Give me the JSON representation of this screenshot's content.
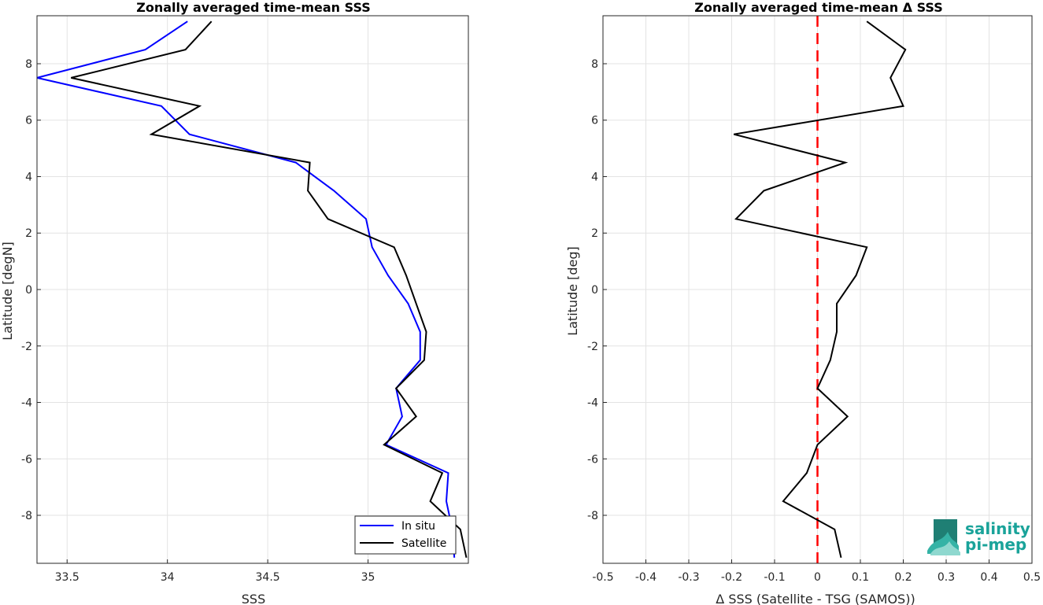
{
  "chart_data": [
    {
      "type": "line",
      "title": "Zonally averaged time-mean SSS",
      "xlabel": "SSS",
      "ylabel": "Latitude [degN]",
      "xlim": [
        33.35,
        35.5
      ],
      "ylim": [
        -9.7,
        9.7
      ],
      "xticks": [
        33.5,
        34,
        34.5,
        35
      ],
      "xtick_labels": [
        "33.5",
        "34",
        "34.5",
        "35"
      ],
      "yticks": [
        -8,
        -6,
        -4,
        -2,
        0,
        2,
        4,
        6,
        8
      ],
      "ytick_labels": [
        "-8",
        "-6",
        "-4",
        "-2",
        "0",
        "2",
        "4",
        "6",
        "8"
      ],
      "grid": true,
      "legend_position": "bottom-right",
      "series": [
        {
          "name": "In situ",
          "color": "#0000ff",
          "points": [
            [
              34.1,
              9.5
            ],
            [
              33.89,
              8.5
            ],
            [
              33.35,
              7.5
            ],
            [
              33.97,
              6.5
            ],
            [
              34.11,
              5.5
            ],
            [
              34.64,
              4.5
            ],
            [
              34.83,
              3.5
            ],
            [
              34.99,
              2.5
            ],
            [
              35.02,
              1.5
            ],
            [
              35.1,
              0.5
            ],
            [
              35.2,
              -0.5
            ],
            [
              35.26,
              -1.5
            ],
            [
              35.26,
              -2.5
            ],
            [
              35.14,
              -3.5
            ],
            [
              35.17,
              -4.5
            ],
            [
              35.09,
              -5.5
            ],
            [
              35.4,
              -6.5
            ],
            [
              35.39,
              -7.5
            ],
            [
              35.42,
              -8.5
            ],
            [
              35.43,
              -9.5
            ]
          ]
        },
        {
          "name": "Satellite",
          "color": "#000000",
          "points": [
            [
              34.22,
              9.5
            ],
            [
              34.09,
              8.5
            ],
            [
              33.52,
              7.5
            ],
            [
              34.16,
              6.5
            ],
            [
              33.92,
              5.5
            ],
            [
              34.71,
              4.5
            ],
            [
              34.7,
              3.5
            ],
            [
              34.8,
              2.5
            ],
            [
              35.13,
              1.5
            ],
            [
              35.19,
              0.5
            ],
            [
              35.24,
              -0.5
            ],
            [
              35.29,
              -1.5
            ],
            [
              35.28,
              -2.5
            ],
            [
              35.14,
              -3.5
            ],
            [
              35.24,
              -4.5
            ],
            [
              35.08,
              -5.5
            ],
            [
              35.37,
              -6.5
            ],
            [
              35.31,
              -7.5
            ],
            [
              35.46,
              -8.5
            ],
            [
              35.49,
              -9.5
            ]
          ]
        }
      ]
    },
    {
      "type": "line",
      "title": "Zonally averaged time-mean Δ SSS",
      "xlabel": "Δ SSS (Satellite - TSG (SAMOS))",
      "ylabel": "Latitude [deg]",
      "xlim": [
        -0.5,
        0.5
      ],
      "ylim": [
        -9.7,
        9.7
      ],
      "xticks": [
        -0.5,
        -0.4,
        -0.3,
        -0.2,
        -0.1,
        0,
        0.1,
        0.2,
        0.3,
        0.4,
        0.5
      ],
      "xtick_labels": [
        "-0.5",
        "-0.4",
        "-0.3",
        "-0.2",
        "-0.1",
        "0",
        "0.1",
        "0.2",
        "0.3",
        "0.4",
        "0.5"
      ],
      "yticks": [
        -8,
        -6,
        -4,
        -2,
        0,
        2,
        4,
        6,
        8
      ],
      "ytick_labels": [
        "-8",
        "-6",
        "-4",
        "-2",
        "0",
        "2",
        "4",
        "6",
        "8"
      ],
      "grid": true,
      "zero_line": {
        "x": 0,
        "color": "#ff0000",
        "style": "dashed"
      },
      "series": [
        {
          "color": "#000000",
          "points": [
            [
              0.115,
              9.5
            ],
            [
              0.205,
              8.5
            ],
            [
              0.17,
              7.5
            ],
            [
              0.2,
              6.5
            ],
            [
              -0.195,
              5.5
            ],
            [
              0.065,
              4.5
            ],
            [
              -0.125,
              3.5
            ],
            [
              -0.19,
              2.5
            ],
            [
              0.115,
              1.5
            ],
            [
              0.09,
              0.5
            ],
            [
              0.045,
              -0.5
            ],
            [
              0.045,
              -1.5
            ],
            [
              0.03,
              -2.5
            ],
            [
              0.0,
              -3.5
            ],
            [
              0.07,
              -4.5
            ],
            [
              0.0,
              -5.5
            ],
            [
              -0.025,
              -6.5
            ],
            [
              -0.08,
              -7.5
            ],
            [
              0.04,
              -8.5
            ],
            [
              0.055,
              -9.5
            ]
          ]
        }
      ]
    }
  ],
  "logo": {
    "line1": "salinity",
    "line2": "pi-mep",
    "color": "#1aa39a",
    "icon": "salinity-pi-mep-logo-icon"
  }
}
